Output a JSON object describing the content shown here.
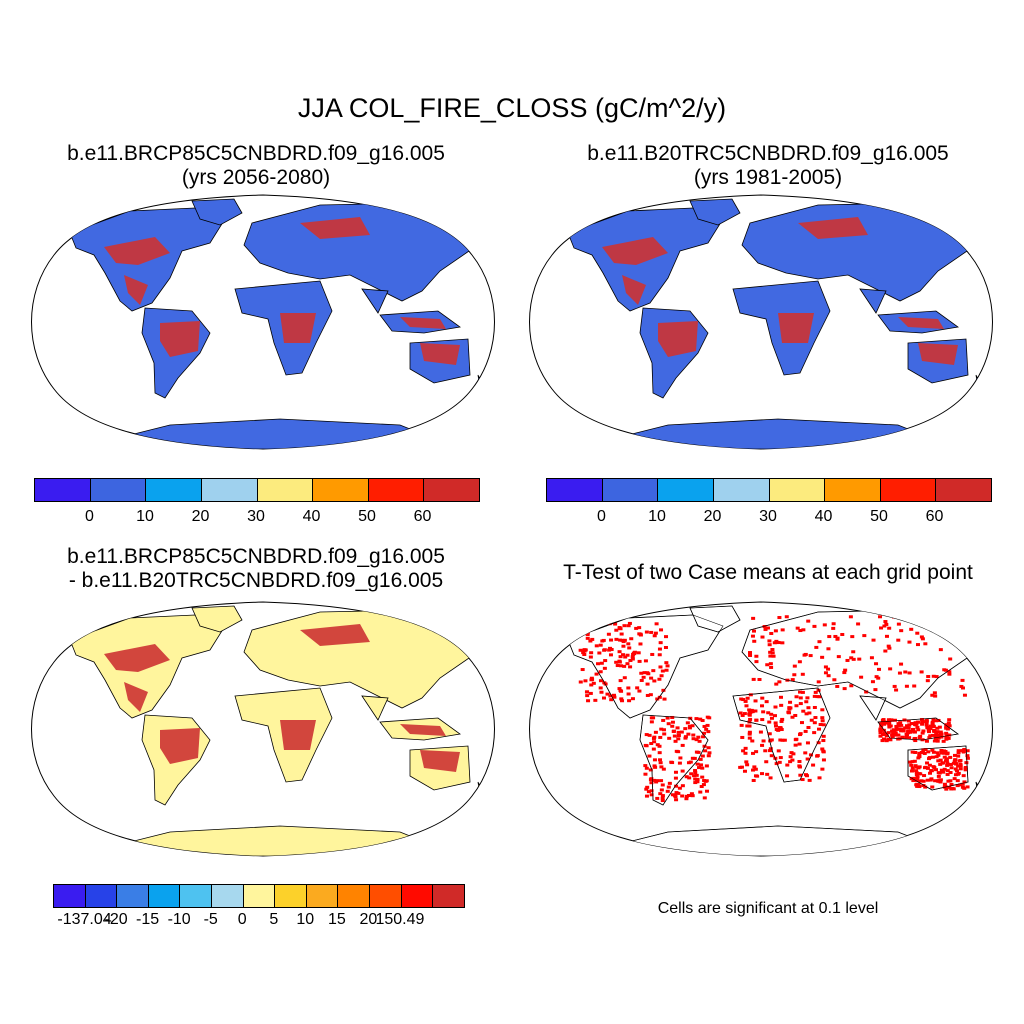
{
  "figure": {
    "title": "JJA COL_FIRE_CLOSS (gC/m^2/y)"
  },
  "panels": [
    {
      "id": "case",
      "title_line1": "b.e11.BRCP85C5CNBDRD.f09_g16.005",
      "title_line2": "(yrs 2056-2080)",
      "colors": {
        "ocean": "#ffffff",
        "land": "#4169e1",
        "hot": "#cd3333"
      }
    },
    {
      "id": "control",
      "title_line1": "b.e11.B20TRC5CNBDRD.f09_g16.005",
      "title_line2": "(yrs 1981-2005)",
      "colors": {
        "ocean": "#ffffff",
        "land": "#4169e1",
        "hot": "#cd3333"
      }
    },
    {
      "id": "difference",
      "title_line1": "b.e11.BRCP85C5CNBDRD.f09_g16.005",
      "title_line2": "- b.e11.B20TRC5CNBDRD.f09_g16.005",
      "colors": {
        "ocean": "#ffffff",
        "land": "#fff59d",
        "hot": "#cd3333"
      }
    },
    {
      "id": "ttest",
      "title_line1": "T-Test of two Case means at each grid point",
      "note": "Cells are significant at 0.1 level",
      "colors": {
        "ocean": "#ffffff",
        "land": "#ffffff",
        "sig": "#ff0000"
      }
    }
  ],
  "colorbar_abs": {
    "colors": [
      "#3a1cf0",
      "#3d65e0",
      "#0aa2ee",
      "#9fd1ee",
      "#fceb7e",
      "#ff9a00",
      "#ff1e00",
      "#d02a28"
    ],
    "ticks": [
      "0",
      "10",
      "20",
      "30",
      "40",
      "50",
      "60"
    ]
  },
  "colorbar_diff": {
    "colors": [
      "#3a1cf0",
      "#2742e8",
      "#3a7ee6",
      "#0aa2ee",
      "#4ec2f0",
      "#a7d8ee",
      "#fff59d",
      "#fcd12a",
      "#fbaa1f",
      "#ff8300",
      "#ff4e00",
      "#ff0a00",
      "#d02a28"
    ],
    "ticks": [
      "-137.04",
      "-20",
      "-15",
      "-10",
      "-5",
      "0",
      "5",
      "10",
      "15",
      "20",
      "150.49"
    ]
  }
}
